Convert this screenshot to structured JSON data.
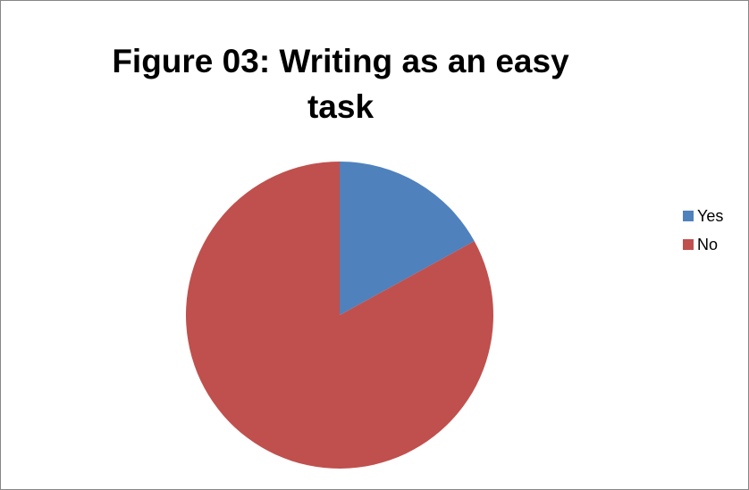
{
  "chart_data": {
    "type": "pie",
    "title": "Figure 03: Writing as an easy task",
    "categories": [
      "Yes",
      "No"
    ],
    "values": [
      17,
      83
    ],
    "colors": [
      "#4f81bd",
      "#c0504d"
    ],
    "legend_position": "right",
    "start_angle": "top, clockwise"
  }
}
